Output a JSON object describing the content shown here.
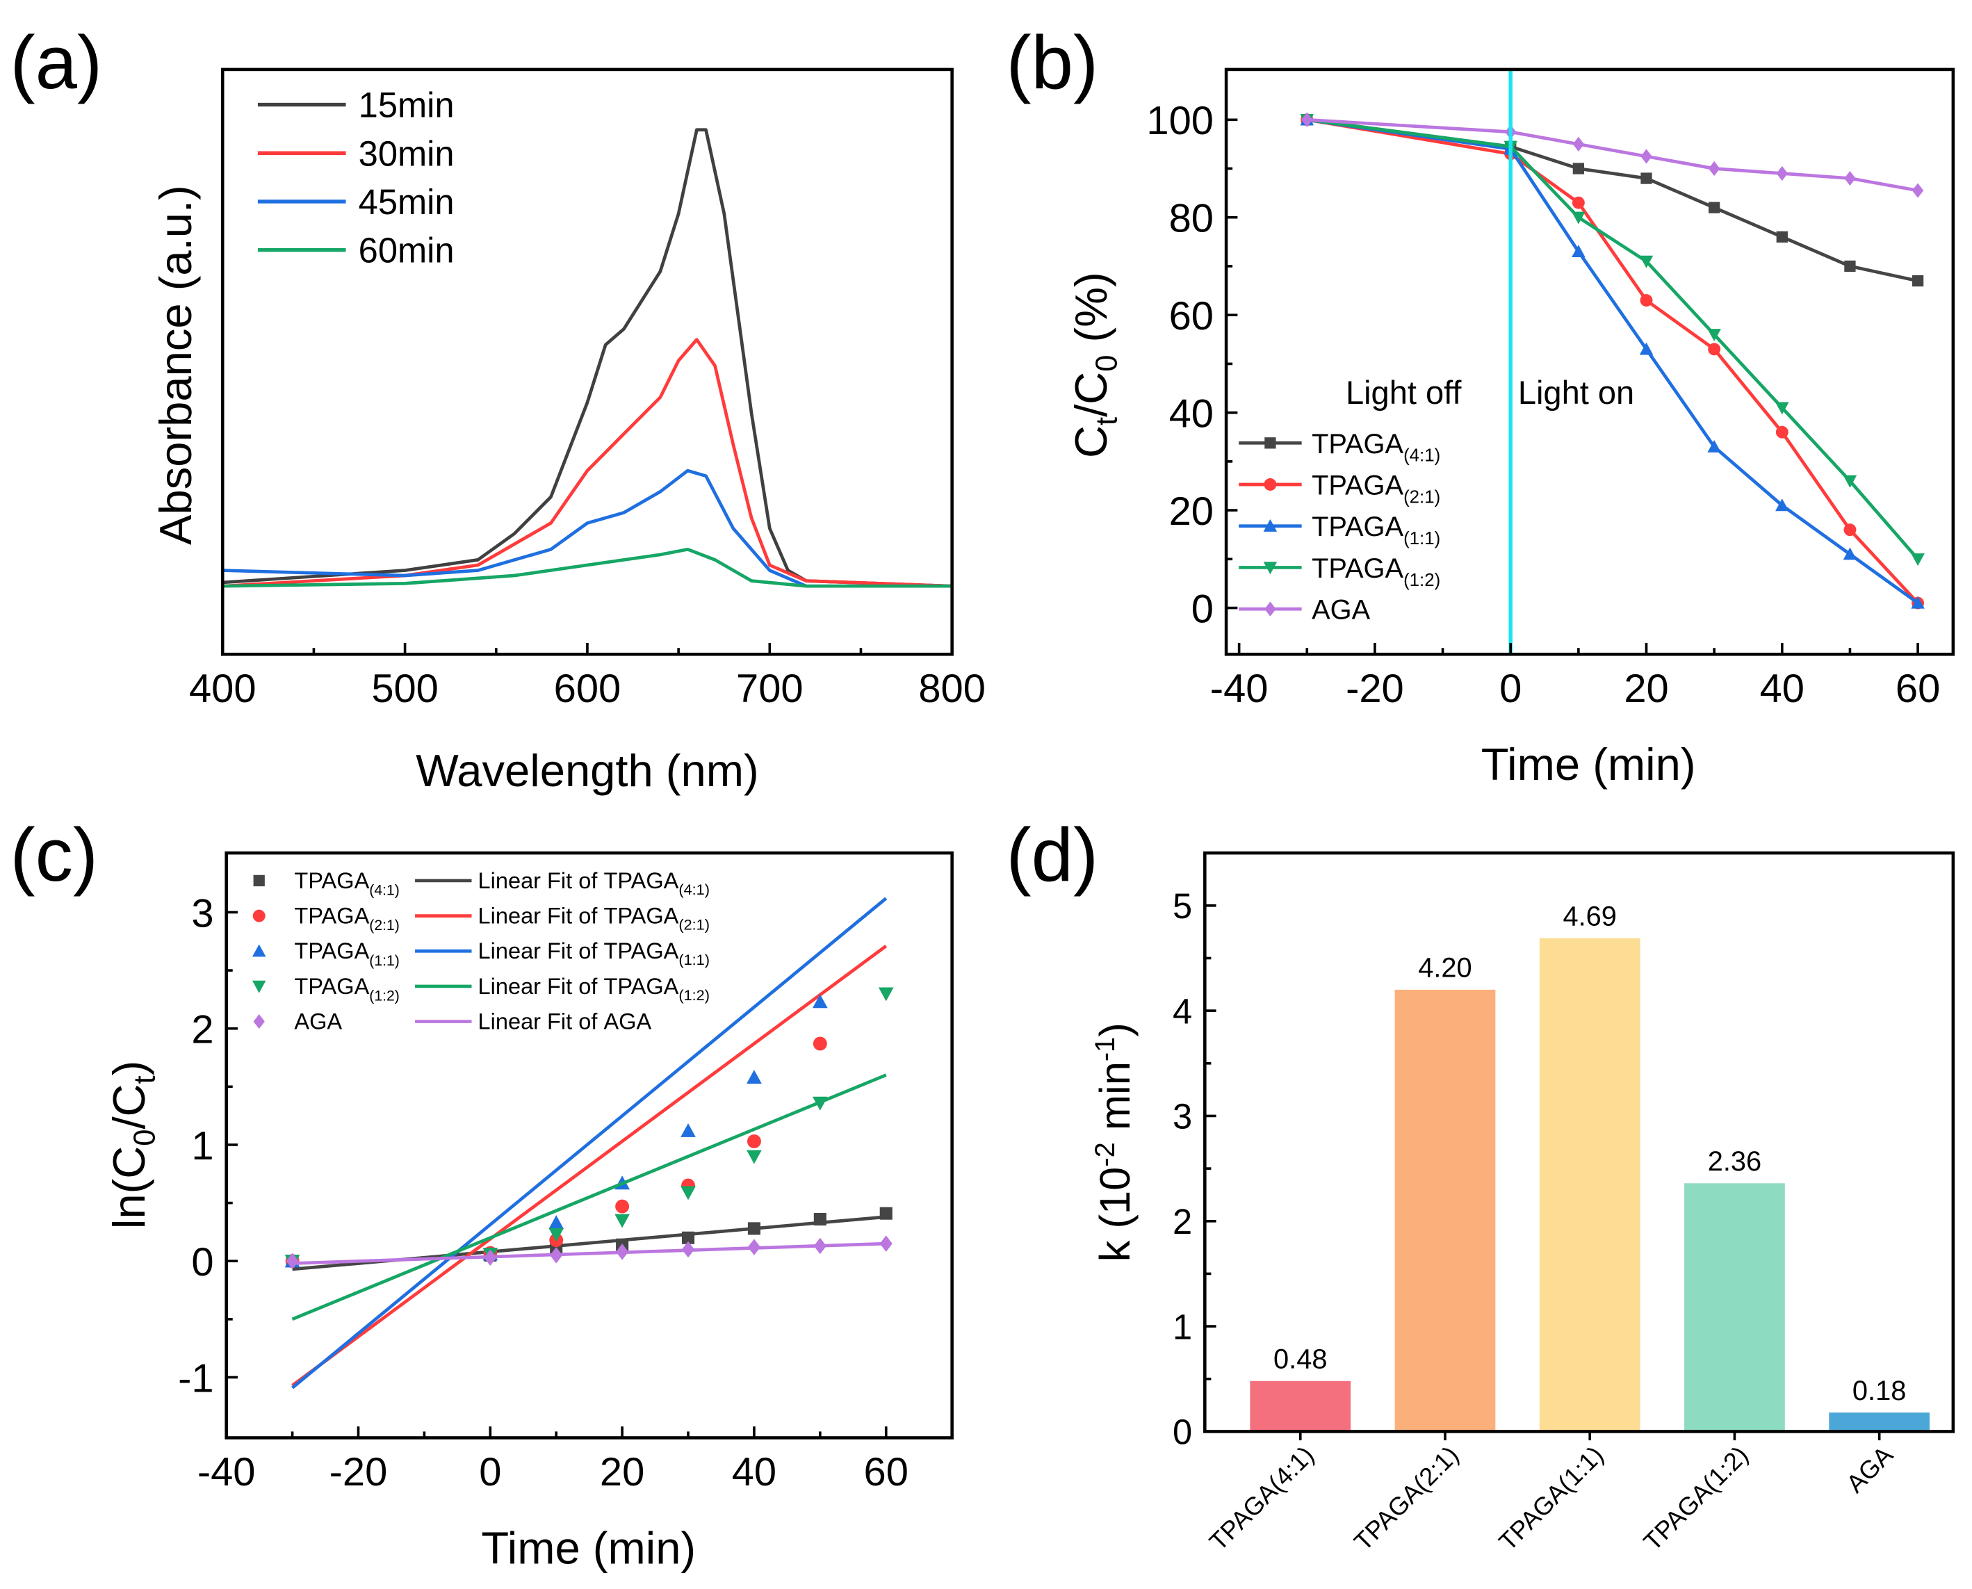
{
  "panel_labels": [
    "(a)",
    "(b)",
    "(c)",
    "(d)"
  ],
  "chart_data": [
    {
      "type": "line",
      "panel": "(a)",
      "xlabel": "Wavelength (nm)",
      "ylabel": "Absorbance (a.u.)",
      "xlim": [
        400,
        800
      ],
      "ylim": [
        0,
        1.115
      ],
      "xticks": [
        400,
        500,
        600,
        700,
        800
      ],
      "yticks_shown": false,
      "legend": "top-left",
      "series": [
        {
          "name": "15min",
          "color": "#404040",
          "x": [
            400,
            500,
            540,
            560,
            580,
            600,
            610,
            620,
            640,
            650,
            660,
            665,
            675,
            690,
            700,
            710,
            720,
            800
          ],
          "y": [
            0.137,
            0.16,
            0.18,
            0.23,
            0.3,
            0.48,
            0.59,
            0.62,
            0.73,
            0.84,
            1.0,
            1.0,
            0.84,
            0.46,
            0.24,
            0.16,
            0.14,
            0.13
          ]
        },
        {
          "name": "30min",
          "color": "#ff3b3b",
          "x": [
            400,
            500,
            540,
            580,
            600,
            620,
            640,
            650,
            660,
            670,
            680,
            690,
            700,
            720,
            800
          ],
          "y": [
            0.13,
            0.15,
            0.17,
            0.25,
            0.35,
            0.42,
            0.49,
            0.56,
            0.6,
            0.55,
            0.4,
            0.26,
            0.17,
            0.14,
            0.13
          ]
        },
        {
          "name": "45min",
          "color": "#1f6fe0",
          "x": [
            400,
            500,
            540,
            580,
            600,
            620,
            640,
            655,
            665,
            680,
            700,
            720,
            800
          ],
          "y": [
            0.16,
            0.15,
            0.16,
            0.2,
            0.25,
            0.27,
            0.31,
            0.35,
            0.34,
            0.24,
            0.16,
            0.13,
            0.13
          ]
        },
        {
          "name": "60min",
          "color": "#16a665",
          "x": [
            400,
            500,
            560,
            600,
            640,
            655,
            670,
            690,
            720,
            800
          ],
          "y": [
            0.13,
            0.135,
            0.15,
            0.17,
            0.19,
            0.2,
            0.18,
            0.14,
            0.13,
            0.13
          ]
        }
      ]
    },
    {
      "type": "line",
      "panel": "(b)",
      "xlabel": "Time (min)",
      "ylabel": {
        "main": "C",
        "sub1": "t",
        "mid": "/C",
        "sub2": "0",
        "end": " (%)"
      },
      "xlim": [
        -41.9,
        65.2
      ],
      "ylim": [
        -9.5,
        110.3
      ],
      "xticks": [
        -40,
        -20,
        0,
        20,
        40,
        60
      ],
      "yticks": [
        0,
        20,
        40,
        60,
        80,
        100
      ],
      "annotations": [
        "Light off",
        "Light on"
      ],
      "divider_x": 0,
      "divider_color": "#19e6f0",
      "legend": "bottom-left",
      "x": [
        -30,
        0,
        10,
        20,
        30,
        40,
        50,
        60
      ],
      "series": [
        {
          "name": "TPAGA",
          "sub": "(4:1)",
          "color": "#454545",
          "marker": "square",
          "values": [
            100,
            94.5,
            90,
            88,
            82,
            76,
            70,
            67
          ]
        },
        {
          "name": "TPAGA",
          "sub": "(2:1)",
          "color": "#ff3b3b",
          "marker": "circle",
          "values": [
            100,
            93,
            83,
            63,
            53,
            36,
            16,
            1
          ]
        },
        {
          "name": "TPAGA",
          "sub": "(1:1)",
          "color": "#1f6fe0",
          "marker": "triangle-up",
          "values": [
            100,
            94,
            73,
            53,
            33,
            21,
            11,
            1
          ]
        },
        {
          "name": "TPAGA",
          "sub": "(1:2)",
          "color": "#16a665",
          "marker": "triangle-down",
          "values": [
            100,
            94.5,
            80,
            71,
            56,
            41,
            26,
            10
          ]
        },
        {
          "name": "AGA",
          "sub": "",
          "color": "#bb76e0",
          "marker": "diamond",
          "values": [
            100,
            97.5,
            95,
            92.5,
            90,
            89,
            88,
            85.5
          ]
        }
      ]
    },
    {
      "type": "scatter",
      "panel": "(c)",
      "xlabel": "Time (min)",
      "ylabel": {
        "main": "ln(C",
        "sub1": "0",
        "mid": "/C",
        "sub2": "t",
        "end": ")"
      },
      "xlim": [
        -40,
        70
      ],
      "ylim": [
        -1.52,
        3.51
      ],
      "xticks": [
        -40,
        -20,
        0,
        20,
        40,
        60
      ],
      "yticks": [
        -1,
        0,
        1,
        2,
        3
      ],
      "legend": "top-left",
      "fit_prefix": "Linear Fit of ",
      "x": [
        -30,
        0,
        10,
        20,
        30,
        40,
        50,
        60
      ],
      "series": [
        {
          "name": "TPAGA",
          "sub": "(4:1)",
          "color": "#454545",
          "marker": "square",
          "values": [
            0,
            0.05,
            0.12,
            0.14,
            0.2,
            0.28,
            0.36,
            0.41
          ],
          "fit": [
            -0.07,
            0.38
          ]
        },
        {
          "name": "TPAGA",
          "sub": "(2:1)",
          "color": "#ff3b3b",
          "marker": "circle",
          "values": [
            0,
            0.07,
            0.18,
            0.47,
            0.65,
            1.03,
            1.87,
            null
          ],
          "fit": [
            -1.07,
            2.71
          ]
        },
        {
          "name": "TPAGA",
          "sub": "(1:1)",
          "color": "#1f6fe0",
          "marker": "triangle-up",
          "values": [
            0,
            0.06,
            0.33,
            0.67,
            1.12,
            1.58,
            2.23,
            null
          ],
          "fit": [
            -1.09,
            3.12
          ]
        },
        {
          "name": "TPAGA",
          "sub": "(1:2)",
          "color": "#16a665",
          "marker": "triangle-down",
          "values": [
            0,
            0.06,
            0.23,
            0.35,
            0.59,
            0.9,
            1.36,
            2.3
          ],
          "fit": [
            -0.5,
            1.6
          ]
        },
        {
          "name": "AGA",
          "sub": "",
          "color": "#bb76e0",
          "marker": "diamond",
          "values": [
            0,
            0.03,
            0.05,
            0.08,
            0.1,
            0.12,
            0.13,
            0.15
          ],
          "fit": [
            -0.02,
            0.15
          ]
        }
      ]
    },
    {
      "type": "bar",
      "panel": "(d)",
      "ylabel": {
        "main": "k (10",
        "sup1": "-2",
        "mid": " min",
        "sup2": "-1",
        "end": ")"
      },
      "ylim": [
        0,
        5.5
      ],
      "yticks": [
        0,
        1,
        2,
        3,
        4,
        5
      ],
      "categories": [
        "TPAGA(4:1)",
        "TPAGA(2:1)",
        "TPAGA(1:1)",
        "TPAGA(1:2)",
        "AGA"
      ],
      "values": [
        0.48,
        4.2,
        4.69,
        2.36,
        0.18
      ],
      "labels": [
        "0.48",
        "4.20",
        "4.69",
        "2.36",
        "0.18"
      ],
      "colors": [
        "#f4707f",
        "#fbb07c",
        "#fddc94",
        "#8ddbc0",
        "#4ba7d8"
      ]
    }
  ]
}
